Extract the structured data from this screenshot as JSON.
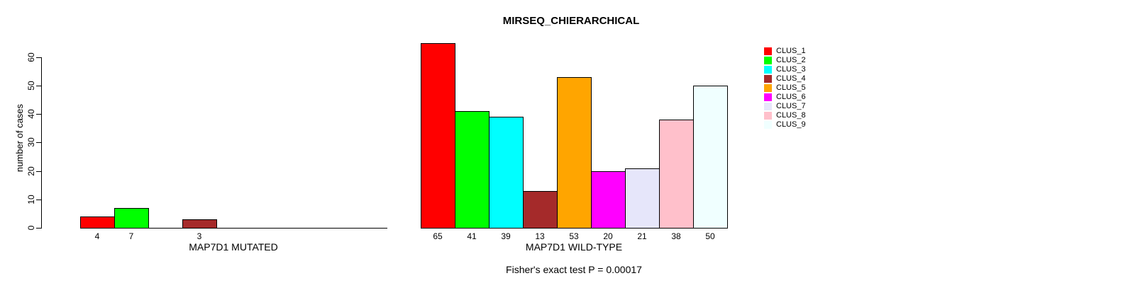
{
  "chart_data": {
    "type": "bar",
    "title": "MIRSEQ_CHIERARCHICAL",
    "ylabel": "number of cases",
    "xlabel": "",
    "annotation": "Fisher's exact test P = 0.00017",
    "ylim": [
      0,
      65
    ],
    "y_ticks": [
      0,
      10,
      20,
      30,
      40,
      50,
      60
    ],
    "grid": false,
    "legend_position": "top-right",
    "legend_entries": [
      "CLUS_1",
      "CLUS_2",
      "CLUS_3",
      "CLUS_4",
      "CLUS_5",
      "CLUS_6",
      "CLUS_7",
      "CLUS_8",
      "CLUS_9"
    ],
    "categories": [
      "CLUS_1",
      "CLUS_2",
      "CLUS_3",
      "CLUS_4",
      "CLUS_5",
      "CLUS_6",
      "CLUS_7",
      "CLUS_8",
      "CLUS_9"
    ],
    "colors": [
      "#ff0000",
      "#00ff00",
      "#00ffff",
      "#a52a2a",
      "#ffa500",
      "#ff00ff",
      "#e6e6fa",
      "#ffc0cb",
      "#f0ffff"
    ],
    "series_note": "two grouped barplots sharing one y-axis; zero-value bars are not drawn and not labeled",
    "groups": [
      {
        "label": "MAP7D1 MUTATED",
        "values": [
          4,
          7,
          0,
          3,
          0,
          0,
          0,
          0,
          0
        ]
      },
      {
        "label": "MAP7D1 WILD-TYPE",
        "values": [
          65,
          41,
          39,
          13,
          53,
          20,
          21,
          38,
          50
        ]
      }
    ]
  }
}
